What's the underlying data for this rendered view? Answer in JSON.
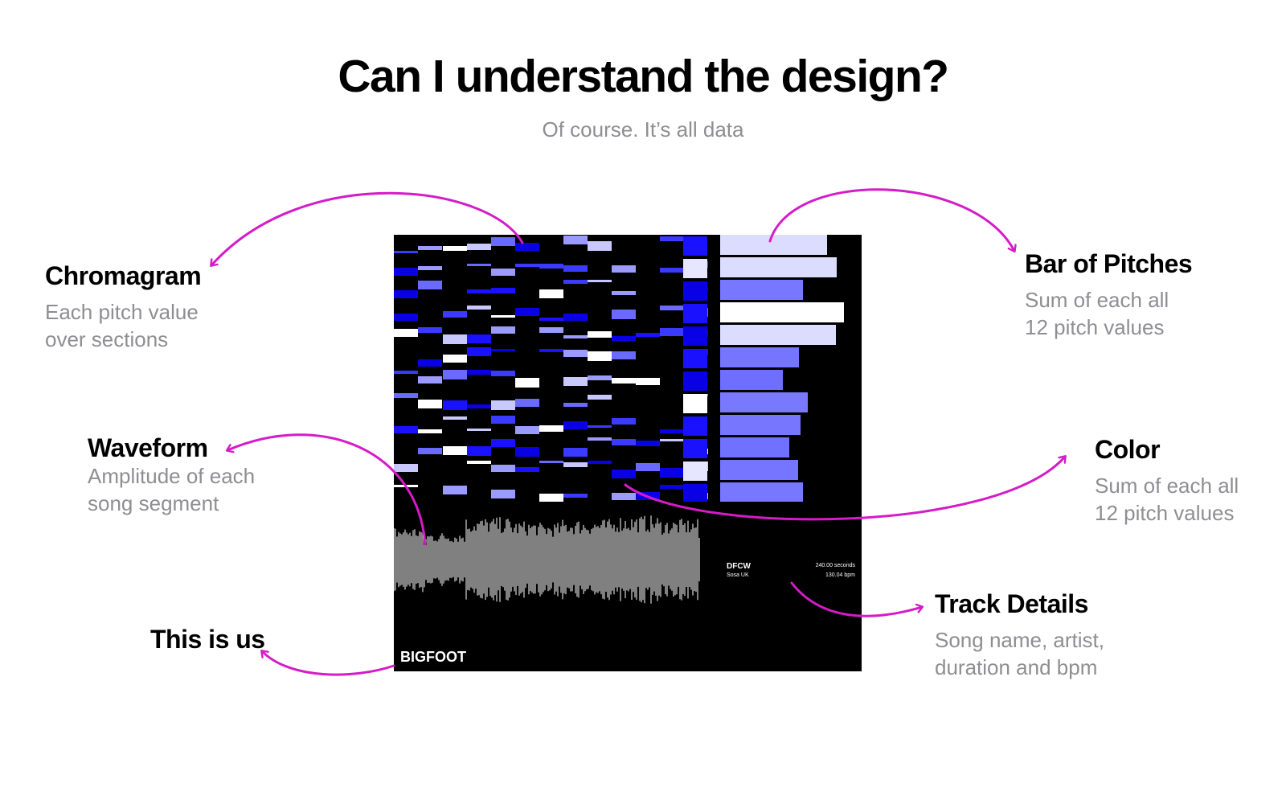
{
  "title": "Can I understand the design?",
  "subtitle": "Of course. It’s all data",
  "annotations": {
    "chromagram": {
      "title": "Chromagram",
      "desc1": "Each pitch value",
      "desc2": "over sections"
    },
    "waveform": {
      "title": "Waveform",
      "desc1": "Amplitude of each",
      "desc2": "song segment"
    },
    "this_is_us": {
      "title": "This is us"
    },
    "bar_of_pitches": {
      "title": "Bar of Pitches",
      "desc1": "Sum of each all",
      "desc2": "12 pitch values"
    },
    "color": {
      "title": "Color",
      "desc1": "Sum of each all",
      "desc2": "12 pitch values"
    },
    "track_details": {
      "title": "Track Details",
      "desc1": "Song name, artist,",
      "desc2": "duration and bpm"
    }
  },
  "artwork": {
    "track_name": "DFCW",
    "artist": "Sosa UK",
    "duration": "240.00 seconds",
    "bpm": "130.04 bpm",
    "brand": "BIGFOOT"
  },
  "colors": {
    "accent_arrow": "#d41cc8",
    "artwork_bg": "#000000",
    "chroma_high": "#ffffff",
    "chroma_mid": "#8a8aff",
    "chroma_low": "#0a00e6",
    "bar_light": "#dcdcff",
    "bar_mid": "#7e7ef5"
  },
  "chart_data": {
    "type": "heatmap",
    "pitch_bar_levels": [
      0.85,
      0.93,
      0.66,
      0.99,
      0.92,
      0.63,
      0.5,
      0.7,
      0.64,
      0.55,
      0.62,
      0.66
    ]
  }
}
